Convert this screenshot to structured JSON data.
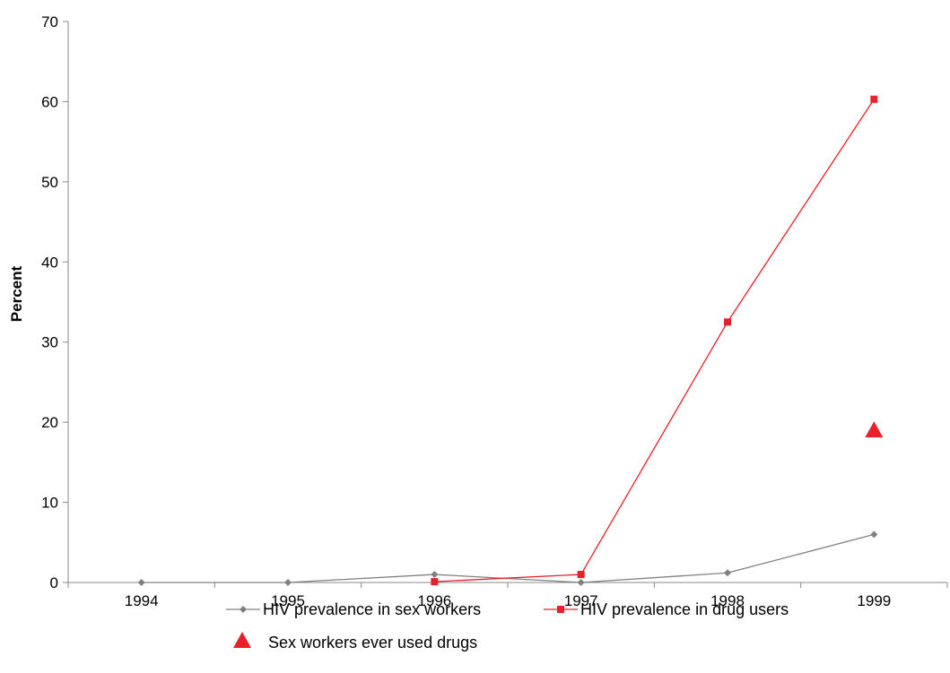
{
  "chart_data": {
    "type": "line",
    "title": "",
    "xlabel": "",
    "ylabel": "Percent",
    "categories": [
      "1994",
      "1995",
      "1996",
      "1997",
      "1998",
      "1999"
    ],
    "ylim": [
      0,
      70
    ],
    "yticks": [
      0,
      10,
      20,
      30,
      40,
      50,
      60,
      70
    ],
    "grid": false,
    "legend": "bottom",
    "series": [
      {
        "name": "HIV prevalence in sex workers",
        "kind": "line",
        "marker": "diamond",
        "color": "#808080",
        "values": [
          0,
          0,
          1,
          0,
          1.2,
          6
        ]
      },
      {
        "name": "HIV prevalence in drug users",
        "kind": "line",
        "marker": "square",
        "color": "#e8202a",
        "values": [
          null,
          null,
          0.1,
          1,
          32.5,
          60.3
        ]
      },
      {
        "name": "Sex workers ever used drugs",
        "kind": "point",
        "marker": "triangle",
        "color": "#e8202a",
        "values": [
          null,
          null,
          null,
          null,
          null,
          19
        ]
      }
    ]
  }
}
